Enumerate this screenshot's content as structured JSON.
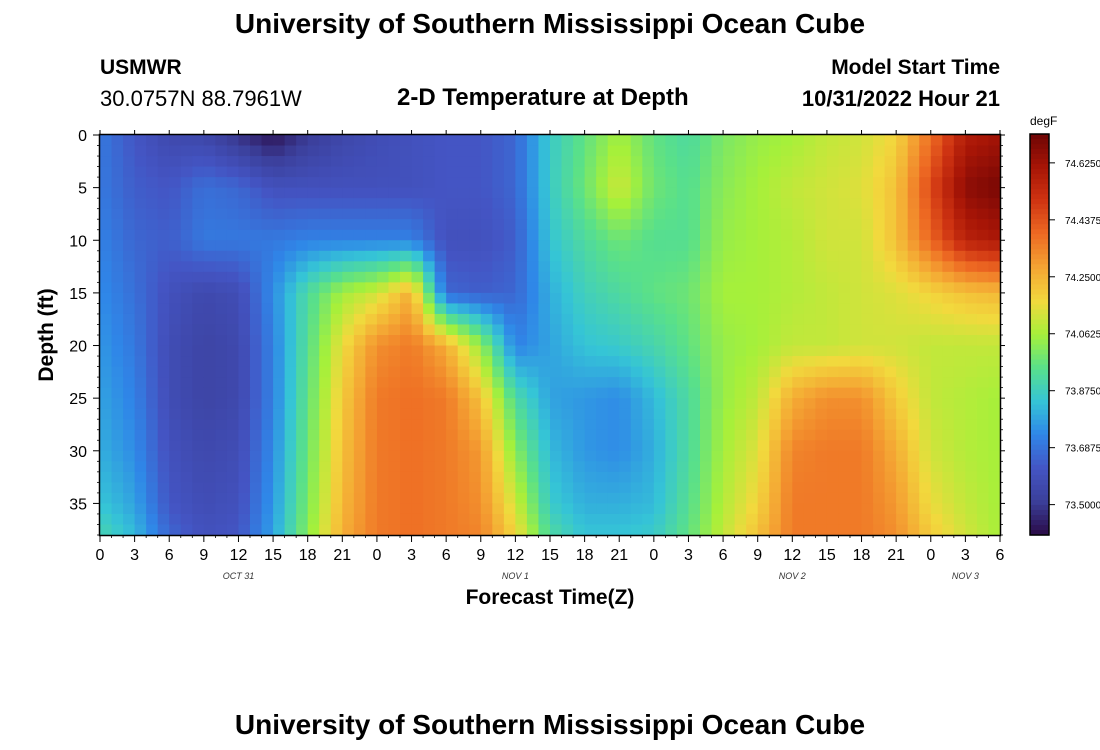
{
  "header": {
    "title_top": "University of Southern Mississippi Ocean Cube",
    "title_bottom": "University of Southern Mississippi Ocean Cube",
    "station_id": "USMWR",
    "station_coords": "30.0757N  88.7961W",
    "chart_title": "2-D Temperature at Depth",
    "model_start_label": "Model Start Time",
    "model_start_value": "10/31/2022 Hour 21"
  },
  "chart_data": {
    "type": "heatmap",
    "title": "2-D Temperature at Depth",
    "xlabel": "Forecast Time(Z)",
    "ylabel": "Depth (ft)",
    "x_start_hour": 0,
    "x_end_hour": 78,
    "x_tick_labels": [
      "0",
      "3",
      "6",
      "9",
      "12",
      "15",
      "18",
      "21",
      "0",
      "3",
      "6",
      "9",
      "12",
      "15",
      "18",
      "21",
      "0",
      "3",
      "6",
      "9",
      "12",
      "15",
      "18",
      "21",
      "0",
      "3",
      "6"
    ],
    "x_date_labels": [
      {
        "label": "OCT 31",
        "hour": 12
      },
      {
        "label": "NOV 1",
        "hour": 36
      },
      {
        "label": "NOV 2",
        "hour": 60
      },
      {
        "label": "NOV 3",
        "hour": 75
      }
    ],
    "y_ticks": [
      0,
      5,
      10,
      15,
      20,
      25,
      30,
      35
    ],
    "ylim": [
      38,
      0
    ],
    "colorbar": {
      "unit": "degF",
      "min": 73.4,
      "max": 74.72,
      "tick_labels": [
        "74.6250",
        "74.4375",
        "74.2500",
        "74.0625",
        "73.8750",
        "73.6875",
        "73.5000"
      ],
      "tick_values": [
        74.625,
        74.4375,
        74.25,
        74.0625,
        73.875,
        73.6875,
        73.5
      ],
      "colors": [
        "#2a0a46",
        "#3b3f9a",
        "#4455c4",
        "#2f86e8",
        "#35c5d6",
        "#59e08a",
        "#a6f03a",
        "#f2d93d",
        "#f4a433",
        "#ee6a23",
        "#cf3412",
        "#a71506",
        "#6e0505"
      ]
    },
    "grid": false,
    "legend": "colorbar-right",
    "x_nodes": [
      0,
      3,
      6,
      9,
      12,
      15,
      18,
      21,
      24,
      27,
      30,
      33,
      36,
      39,
      42,
      45,
      48,
      51,
      54,
      57,
      60,
      63,
      66,
      69,
      72,
      75,
      78
    ],
    "depth_nodes": [
      0,
      5,
      10,
      15,
      20,
      25,
      30,
      35,
      38
    ],
    "temperature_grid": [
      [
        73.7,
        73.62,
        73.56,
        73.55,
        73.48,
        73.42,
        73.5,
        73.55,
        73.58,
        73.6,
        73.62,
        73.62,
        73.66,
        73.86,
        73.96,
        74.06,
        73.96,
        73.92,
        74.0,
        74.04,
        74.06,
        74.1,
        74.12,
        74.18,
        74.38,
        74.58,
        74.62
      ],
      [
        73.7,
        73.64,
        73.62,
        73.68,
        73.66,
        73.6,
        73.6,
        73.6,
        73.6,
        73.6,
        73.62,
        73.62,
        73.66,
        73.86,
        73.98,
        74.12,
        73.98,
        73.94,
        74.02,
        74.06,
        74.1,
        74.12,
        74.14,
        74.22,
        74.46,
        74.66,
        74.7
      ],
      [
        73.72,
        73.66,
        73.64,
        73.7,
        73.7,
        73.7,
        73.72,
        73.72,
        73.72,
        73.72,
        73.6,
        73.6,
        73.64,
        73.84,
        73.92,
        73.98,
        73.94,
        73.94,
        74.04,
        74.06,
        74.08,
        74.12,
        74.12,
        74.22,
        74.4,
        74.56,
        74.6
      ],
      [
        73.74,
        73.68,
        73.6,
        73.56,
        73.58,
        73.74,
        73.92,
        74.06,
        74.12,
        74.26,
        73.66,
        73.64,
        73.66,
        73.8,
        73.88,
        73.92,
        73.96,
        73.98,
        74.06,
        74.06,
        74.08,
        74.1,
        74.12,
        74.14,
        74.18,
        74.22,
        74.24
      ],
      [
        73.76,
        73.7,
        73.58,
        73.54,
        73.56,
        73.72,
        73.94,
        74.16,
        74.32,
        74.36,
        74.26,
        74.04,
        73.72,
        73.78,
        73.84,
        73.86,
        73.9,
        73.96,
        74.04,
        74.06,
        74.1,
        74.1,
        74.12,
        74.12,
        74.1,
        74.1,
        74.1
      ],
      [
        73.78,
        73.72,
        73.58,
        73.54,
        73.56,
        73.72,
        73.96,
        74.2,
        74.36,
        74.38,
        74.36,
        74.22,
        73.92,
        73.78,
        73.76,
        73.74,
        73.82,
        73.92,
        74.04,
        74.1,
        74.26,
        74.32,
        74.32,
        74.2,
        74.1,
        74.08,
        74.06
      ],
      [
        73.8,
        73.74,
        73.6,
        73.56,
        73.58,
        73.74,
        73.98,
        74.22,
        74.36,
        74.38,
        74.36,
        74.3,
        74.02,
        73.82,
        73.76,
        73.74,
        73.8,
        73.92,
        74.06,
        74.14,
        74.34,
        74.36,
        74.36,
        74.26,
        74.12,
        74.08,
        74.06
      ],
      [
        73.84,
        73.78,
        73.62,
        73.58,
        73.6,
        73.76,
        74.0,
        74.24,
        74.36,
        74.38,
        74.36,
        74.32,
        74.12,
        73.86,
        73.8,
        73.8,
        73.82,
        73.94,
        74.08,
        74.18,
        74.36,
        74.36,
        74.36,
        74.3,
        74.16,
        74.1,
        74.06
      ],
      [
        73.9,
        73.82,
        73.66,
        73.6,
        73.62,
        73.78,
        74.02,
        74.26,
        74.36,
        74.38,
        74.36,
        74.34,
        74.18,
        73.92,
        73.84,
        73.84,
        73.86,
        73.96,
        74.1,
        74.22,
        74.36,
        74.36,
        74.36,
        74.32,
        74.2,
        74.12,
        74.06
      ]
    ]
  },
  "colorbar_unit": "degF"
}
